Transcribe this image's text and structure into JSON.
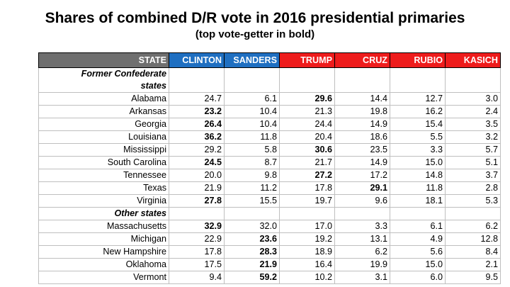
{
  "title": "Shares of combined D/R vote in 2016 presidential primaries",
  "subtitle": "(top vote-getter in bold)",
  "headers": {
    "state": "STATE",
    "candidates": [
      "CLINTON",
      "SANDERS",
      "TRUMP",
      "CRUZ",
      "RUBIO",
      "KASICH"
    ]
  },
  "header_colors": {
    "state": "#6f6f6f",
    "democrat": "#1f6fc1",
    "republican": "#ee1c1c"
  },
  "sections": [
    {
      "label_line1": "Former Confederate",
      "label_line2": "states",
      "rows": [
        {
          "state": "Alabama",
          "values": [
            "24.7",
            "6.1",
            "29.6",
            "14.4",
            "12.7",
            "3.0"
          ],
          "bold_index": 2
        },
        {
          "state": "Arkansas",
          "values": [
            "23.2",
            "10.4",
            "21.3",
            "19.8",
            "16.2",
            "2.4"
          ],
          "bold_index": 0
        },
        {
          "state": "Georgia",
          "values": [
            "26.4",
            "10.4",
            "24.4",
            "14.9",
            "15.4",
            "3.5"
          ],
          "bold_index": 0
        },
        {
          "state": "Louisiana",
          "values": [
            "36.2",
            "11.8",
            "20.4",
            "18.6",
            "5.5",
            "3.2"
          ],
          "bold_index": 0
        },
        {
          "state": "Mississippi",
          "values": [
            "29.2",
            "5.8",
            "30.6",
            "23.5",
            "3.3",
            "5.7"
          ],
          "bold_index": 2
        },
        {
          "state": "South Carolina",
          "values": [
            "24.5",
            "8.7",
            "21.7",
            "14.9",
            "15.0",
            "5.1"
          ],
          "bold_index": 0
        },
        {
          "state": "Tennessee",
          "values": [
            "20.0",
            "9.8",
            "27.2",
            "17.2",
            "14.8",
            "3.7"
          ],
          "bold_index": 2
        },
        {
          "state": "Texas",
          "values": [
            "21.9",
            "11.2",
            "17.8",
            "29.1",
            "11.8",
            "2.8"
          ],
          "bold_index": 3
        },
        {
          "state": "Virginia",
          "values": [
            "27.8",
            "15.5",
            "19.7",
            "9.6",
            "18.1",
            "5.3"
          ],
          "bold_index": 0
        }
      ]
    },
    {
      "label_line1": "Other states",
      "label_line2": "",
      "rows": [
        {
          "state": "Massachusetts",
          "values": [
            "32.9",
            "32.0",
            "17.0",
            "3.3",
            "6.1",
            "6.2"
          ],
          "bold_index": 0
        },
        {
          "state": "Michigan",
          "values": [
            "22.9",
            "23.6",
            "19.2",
            "13.1",
            "4.9",
            "12.8"
          ],
          "bold_index": 1
        },
        {
          "state": "New Hampshire",
          "values": [
            "17.8",
            "28.3",
            "18.9",
            "6.2",
            "5.6",
            "8.4"
          ],
          "bold_index": 1
        },
        {
          "state": "Oklahoma",
          "values": [
            "17.5",
            "21.9",
            "16.4",
            "19.9",
            "15.0",
            "2.1"
          ],
          "bold_index": 1
        },
        {
          "state": "Vermont",
          "values": [
            "9.4",
            "59.2",
            "10.2",
            "3.1",
            "6.0",
            "9.5"
          ],
          "bold_index": 1
        }
      ]
    }
  ]
}
